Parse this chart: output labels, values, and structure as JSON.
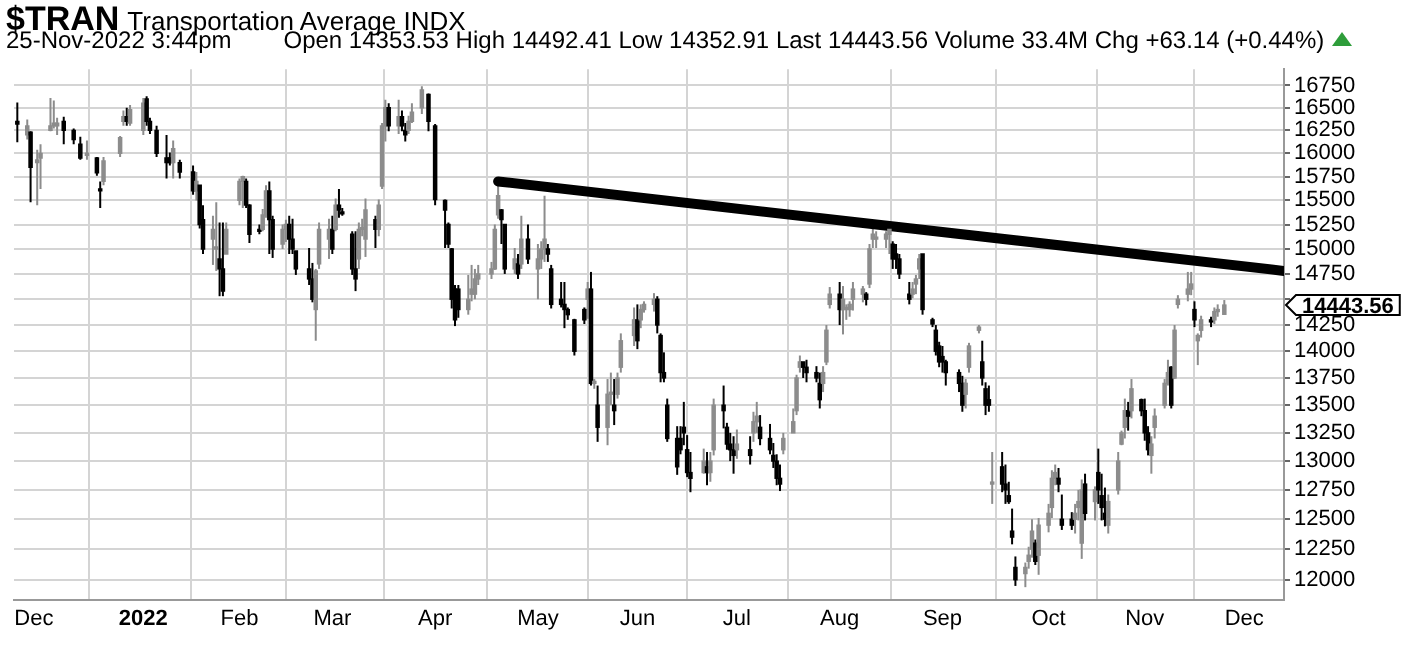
{
  "chart_data": {
    "type": "candlestick",
    "title": "$TRAN",
    "subtitle": "Transportation Average INDX",
    "annotations": [
      "25-Nov-2022 3:44pm",
      "Open 14353.53 High 14492.41 Low 14352.91 Last 14443.56 Volume 33.4M Chg +63.14 (+0.44%)",
      "14443.56"
    ],
    "colors": [
      "#000000",
      "#8c8c8c",
      "#000000",
      "#8c8c8c",
      "#8c8c8c",
      "#8c8c8c",
      "#8c8c8c",
      "#8c8c8c",
      "#000000",
      "#000000",
      "#000000",
      "#8c8c8c",
      "#000000",
      "#000000",
      "#8c8c8c",
      "#8c8c8c",
      "#8c8c8c",
      "#000000",
      "#8c8c8c",
      "#8c8c8c",
      "#000000",
      "#000000",
      "#000000",
      "#000000",
      "#000000",
      "#8c8c8c",
      "#000000",
      "#000000",
      "#8c8c8c",
      "#000000",
      "#000000",
      "#8c8c8c",
      "#8c8c8c",
      "#000000",
      "#000000",
      "#8c8c8c",
      "#8c8c8c",
      "#8c8c8c",
      "#000000",
      "#000000",
      "#000000",
      "#8c8c8c",
      "#8c8c8c",
      "#000000",
      "#000000",
      "#8c8c8c",
      "#8c8c8c",
      "#000000",
      "#000000",
      "#000000",
      "#000000",
      "#000000",
      "#8c8c8c",
      "#8c8c8c",
      "#8c8c8c",
      "#000000",
      "#8c8c8c",
      "#000000",
      "#000000",
      "#000000",
      "#000000",
      "#8c8c8c",
      "#8c8c8c",
      "#8c8c8c",
      "#000000",
      "#8c8c8c",
      "#8c8c8c",
      "#8c8c8c",
      "#000000",
      "#8c8c8c",
      "#000000",
      "#000000",
      "#8c8c8c",
      "#8c8c8c",
      "#8c8c8c",
      "#000000",
      "#000000",
      "#000000",
      "#000000",
      "#000000",
      "#000000",
      "#000000",
      "#8c8c8c",
      "#8c8c8c",
      "#8c8c8c",
      "#8c8c8c",
      "#8c8c8c",
      "#8c8c8c",
      "#8c8c8c",
      "#000000",
      "#000000",
      "#8c8c8c",
      "#000000",
      "#8c8c8c",
      "#000000",
      "#8c8c8c",
      "#8c8c8c",
      "#8c8c8c",
      "#000000",
      "#000000",
      "#000000",
      "#000000",
      "#000000",
      "#000000",
      "#000000",
      "#8c8c8c",
      "#000000",
      "#8c8c8c",
      "#000000",
      "#8c8c8c",
      "#8c8c8c",
      "#000000",
      "#8c8c8c",
      "#8c8c8c",
      "#8c8c8c",
      "#000000",
      "#8c8c8c",
      "#8c8c8c",
      "#8c8c8c",
      "#000000",
      "#000000",
      "#000000",
      "#000000",
      "#000000",
      "#000000",
      "#000000",
      "#000000",
      "#000000",
      "#8c8c8c",
      "#000000",
      "#8c8c8c",
      "#8c8c8c",
      "#000000",
      "#000000",
      "#000000",
      "#000000",
      "#8c8c8c",
      "#000000",
      "#8c8c8c",
      "#8c8c8c",
      "#000000",
      "#000000",
      "#000000",
      "#000000",
      "#000000",
      "#8c8c8c",
      "#8c8c8c",
      "#8c8c8c",
      "#8c8c8c",
      "#000000",
      "#000000",
      "#000000",
      "#000000",
      "#8c8c8c",
      "#8c8c8c",
      "#8c8c8c",
      "#000000",
      "#8c8c8c",
      "#8c8c8c",
      "#8c8c8c",
      "#8c8c8c",
      "#8c8c8c",
      "#000000",
      "#8c8c8c",
      "#8c8c8c",
      "#8c8c8c",
      "#8c8c8c",
      "#8c8c8c",
      "#000000",
      "#000000",
      "#000000",
      "#000000",
      "#8c8c8c",
      "#8c8c8c",
      "#8c8c8c",
      "#000000",
      "#000000",
      "#000000",
      "#000000",
      "#000000",
      "#000000",
      "#000000",
      "#000000",
      "#8c8c8c",
      "#8c8c8c",
      "#8c8c8c",
      "#000000",
      "#000000",
      "#000000",
      "#8c8c8c",
      "#000000",
      "#000000",
      "#000000",
      "#000000",
      "#000000",
      "#8c8c8c",
      "#8c8c8c",
      "#8c8c8c",
      "#000000",
      "#8c8c8c",
      "#8c8c8c",
      "#8c8c8c",
      "#8c8c8c",
      "#000000",
      "#000000",
      "#000000",
      "#8c8c8c",
      "#8c8c8c",
      "#8c8c8c",
      "#000000",
      "#8c8c8c",
      "#000000",
      "#000000",
      "#000000",
      "#8c8c8c",
      "#8c8c8c",
      "#8c8c8c",
      "#8c8c8c",
      "#000000",
      "#8c8c8c",
      "#000000",
      "#000000",
      "#000000",
      "#8c8c8c",
      "#8c8c8c",
      "#8c8c8c",
      "#8c8c8c",
      "#000000",
      "#8c8c8c",
      "#8c8c8c",
      "#8c8c8c",
      "#8c8c8c",
      "#000000",
      "#8c8c8c",
      "#8c8c8c",
      "#000000",
      "#8c8c8c",
      "#8c8c8c",
      "#8c8c8c"
    ],
    "log": true,
    "grid": true,
    "xlim": [
      "2021-11-25",
      "2022-12-13"
    ],
    "xticks": [
      {
        "value": "2021-12-01",
        "label": "Dec"
      },
      {
        "value": "2022-01-03",
        "label": "2022"
      },
      {
        "value": "2022-02-01",
        "label": "Feb"
      },
      {
        "value": "2022-03-01",
        "label": "Mar"
      },
      {
        "value": "2022-04-01",
        "label": "Apr"
      },
      {
        "value": "2022-05-02",
        "label": "May"
      },
      {
        "value": "2022-06-01",
        "label": "Jun"
      },
      {
        "value": "2022-07-01",
        "label": "Jul"
      },
      {
        "value": "2022-08-01",
        "label": "Aug"
      },
      {
        "value": "2022-09-01",
        "label": "Sep"
      },
      {
        "value": "2022-10-03",
        "label": "Oct"
      },
      {
        "value": "2022-11-01",
        "label": "Nov"
      },
      {
        "value": "2022-12-01",
        "label": "Dec"
      }
    ],
    "ylim": [
      11837,
      16935
    ],
    "yticks": [
      12000,
      12250,
      12500,
      12750,
      13000,
      13250,
      13500,
      13750,
      14000,
      14250,
      {
        "value": 14500,
        "label": null
      },
      14750,
      15000,
      15250,
      15500,
      15750,
      16000,
      16250,
      16500,
      16750
    ],
    "x": [
      "2021-11-26",
      "2021-11-29",
      "2021-11-30",
      "2021-12-02",
      "2021-12-03",
      "2021-12-06",
      "2021-12-07",
      "2021-12-08",
      "2021-12-10",
      "2021-12-13",
      "2021-12-15",
      "2021-12-17",
      "2021-12-20",
      "2021-12-21",
      "2021-12-22",
      "2021-12-27",
      "2021-12-28",
      "2021-12-29",
      "2021-12-30",
      "2022-01-03",
      "2022-01-04",
      "2022-01-05",
      "2022-01-07",
      "2022-01-10",
      "2022-01-11",
      "2022-01-12",
      "2022-01-14",
      "2022-01-18",
      "2022-01-19",
      "2022-01-20",
      "2022-01-21",
      "2022-01-24",
      "2022-01-25",
      "2022-01-26",
      "2022-01-27",
      "2022-01-28",
      "2022-02-01",
      "2022-02-02",
      "2022-02-03",
      "2022-02-04",
      "2022-02-07",
      "2022-02-08",
      "2022-02-09",
      "2022-02-10",
      "2022-02-11",
      "2022-02-14",
      "2022-02-15",
      "2022-02-16",
      "2022-02-17",
      "2022-02-18",
      "2022-02-22",
      "2022-02-23",
      "2022-02-24",
      "2022-02-25",
      "2022-02-28",
      "2022-03-01",
      "2022-03-02",
      "2022-03-03",
      "2022-03-04",
      "2022-03-07",
      "2022-03-08",
      "2022-03-09",
      "2022-03-10",
      "2022-03-11",
      "2022-03-14",
      "2022-03-15",
      "2022-03-16",
      "2022-03-17",
      "2022-03-18",
      "2022-03-21",
      "2022-03-22",
      "2022-03-23",
      "2022-03-24",
      "2022-03-25",
      "2022-03-28",
      "2022-03-30",
      "2022-04-01",
      "2022-04-04",
      "2022-04-05",
      "2022-04-06",
      "2022-04-07",
      "2022-04-08",
      "2022-04-11",
      "2022-04-12",
      "2022-04-13",
      "2022-04-14",
      "2022-04-18",
      "2022-04-19",
      "2022-04-20",
      "2022-04-21",
      "2022-04-22",
      "2022-04-25",
      "2022-04-26",
      "2022-04-27",
      "2022-04-29",
      "2022-05-02",
      "2022-05-03",
      "2022-05-04",
      "2022-05-05",
      "2022-05-06",
      "2022-05-09",
      "2022-05-10",
      "2022-05-11",
      "2022-05-13",
      "2022-05-16",
      "2022-05-17",
      "2022-05-18",
      "2022-05-19",
      "2022-05-20",
      "2022-05-23",
      "2022-05-24",
      "2022-05-25",
      "2022-05-26",
      "2022-05-27",
      "2022-05-31",
      "2022-06-01",
      "2022-06-02",
      "2022-06-03",
      "2022-06-06",
      "2022-06-07",
      "2022-06-08",
      "2022-06-09",
      "2022-06-10",
      "2022-06-13",
      "2022-06-14",
      "2022-06-15",
      "2022-06-16",
      "2022-06-17",
      "2022-06-21",
      "2022-06-22",
      "2022-06-23",
      "2022-06-24",
      "2022-06-27",
      "2022-06-28",
      "2022-06-29",
      "2022-06-30",
      "2022-07-01",
      "2022-07-05",
      "2022-07-06",
      "2022-07-07",
      "2022-07-08",
      "2022-07-11",
      "2022-07-12",
      "2022-07-13",
      "2022-07-14",
      "2022-07-15",
      "2022-07-18",
      "2022-07-19",
      "2022-07-20",
      "2022-07-21",
      "2022-07-22",
      "2022-07-25",
      "2022-07-26",
      "2022-07-27",
      "2022-07-28",
      "2022-07-29",
      "2022-08-01",
      "2022-08-02",
      "2022-08-03",
      "2022-08-04",
      "2022-08-05",
      "2022-08-08",
      "2022-08-09",
      "2022-08-10",
      "2022-08-11",
      "2022-08-12",
      "2022-08-15",
      "2022-08-16",
      "2022-08-17",
      "2022-08-18",
      "2022-08-19",
      "2022-08-22",
      "2022-08-23",
      "2022-08-24",
      "2022-08-25",
      "2022-08-26",
      "2022-08-29",
      "2022-08-30",
      "2022-08-31",
      "2022-09-01",
      "2022-09-02",
      "2022-09-06",
      "2022-09-07",
      "2022-09-08",
      "2022-09-09",
      "2022-09-12",
      "2022-09-13",
      "2022-09-14",
      "2022-09-15",
      "2022-09-16",
      "2022-09-19",
      "2022-09-20",
      "2022-09-21",
      "2022-09-22",
      "2022-09-23",
      "2022-09-26",
      "2022-09-27",
      "2022-09-28",
      "2022-09-29",
      "2022-09-30",
      "2022-10-03",
      "2022-10-04",
      "2022-10-05",
      "2022-10-06",
      "2022-10-07",
      "2022-10-10",
      "2022-10-11",
      "2022-10-12",
      "2022-10-13",
      "2022-10-14",
      "2022-10-17",
      "2022-10-18",
      "2022-10-19",
      "2022-10-20",
      "2022-10-21",
      "2022-10-24",
      "2022-10-25",
      "2022-10-26",
      "2022-10-27",
      "2022-10-28",
      "2022-10-31",
      "2022-11-01",
      "2022-11-02",
      "2022-11-03",
      "2022-11-04",
      "2022-11-07",
      "2022-11-08",
      "2022-11-09",
      "2022-11-10",
      "2022-11-11",
      "2022-11-14",
      "2022-11-15",
      "2022-11-16",
      "2022-11-17",
      "2022-11-18",
      "2022-11-21",
      "2022-11-22",
      "2022-11-23",
      "2022-11-25"
    ],
    "ohlc": [
      [
        16350,
        16560,
        16120,
        16320
      ],
      [
        16200,
        16370,
        16150,
        16300
      ],
      [
        16230,
        16240,
        15480,
        15850
      ],
      [
        15900,
        16040,
        15450,
        15930
      ],
      [
        15950,
        16100,
        15620,
        16000
      ],
      [
        16250,
        16610,
        16240,
        16300
      ],
      [
        16300,
        16580,
        16270,
        16330
      ],
      [
        16300,
        16390,
        16200,
        16330
      ],
      [
        16350,
        16400,
        16100,
        16250
      ],
      [
        16250,
        16270,
        16100,
        16150
      ],
      [
        16100,
        16180,
        15930,
        15950
      ],
      [
        15980,
        16140,
        15930,
        16000
      ],
      [
        15950,
        15960,
        15760,
        15790
      ],
      [
        15620,
        15700,
        15420,
        15600
      ],
      [
        15700,
        15960,
        15660,
        15920
      ],
      [
        16000,
        16190,
        15960,
        16170
      ],
      [
        16350,
        16470,
        16300,
        16400
      ],
      [
        16400,
        16500,
        16300,
        16350
      ],
      [
        16330,
        16530,
        16300,
        16480
      ],
      [
        16250,
        16610,
        16200,
        16550
      ],
      [
        16600,
        16630,
        16300,
        16350
      ],
      [
        16350,
        16390,
        16210,
        16250
      ],
      [
        16250,
        16300,
        15960,
        16000
      ],
      [
        15950,
        16200,
        15730,
        15900
      ],
      [
        15950,
        16010,
        15870,
        15900
      ],
      [
        15900,
        16140,
        15730,
        16050
      ],
      [
        15900,
        15930,
        15730,
        15800
      ],
      [
        15800,
        15870,
        15560,
        15600
      ],
      [
        15600,
        15800,
        15500,
        15700
      ],
      [
        15660,
        15660,
        15210,
        15250
      ],
      [
        15300,
        15450,
        14950,
        15000
      ],
      [
        15100,
        15340,
        14840,
        15200
      ],
      [
        15000,
        15480,
        14780,
        15010
      ],
      [
        14900,
        15270,
        14530,
        14800
      ],
      [
        14800,
        15270,
        14530,
        14580
      ],
      [
        14950,
        15270,
        14950,
        15200
      ],
      [
        15500,
        15730,
        15450,
        15700
      ],
      [
        15700,
        15760,
        15420,
        15750
      ],
      [
        15700,
        15730,
        15420,
        15450
      ],
      [
        15450,
        15460,
        15060,
        15150
      ],
      [
        15200,
        15250,
        15150,
        15180
      ],
      [
        15200,
        15410,
        15180,
        15350
      ],
      [
        15350,
        15660,
        15320,
        15600
      ],
      [
        15600,
        15700,
        14950,
        15300
      ],
      [
        15300,
        15340,
        14910,
        15000
      ],
      [
        15050,
        15250,
        15000,
        15200
      ],
      [
        15200,
        15300,
        15070,
        15250
      ],
      [
        15250,
        15340,
        14950,
        15100
      ],
      [
        15100,
        15310,
        14950,
        15000
      ],
      [
        14980,
        14980,
        14740,
        14800
      ],
      [
        14800,
        15010,
        14640,
        14700
      ],
      [
        14700,
        14860,
        14470,
        14500
      ],
      [
        14400,
        14800,
        14100,
        14780
      ],
      [
        14850,
        15270,
        14800,
        15200
      ],
      [
        15100,
        15310,
        14900,
        15200
      ],
      [
        15200,
        15340,
        14950,
        15000
      ],
      [
        15200,
        15520,
        15180,
        15450
      ],
      [
        15450,
        15620,
        15320,
        15400
      ],
      [
        15380,
        15420,
        15340,
        15360
      ],
      [
        15150,
        15180,
        14740,
        14800
      ],
      [
        14800,
        15180,
        14580,
        14700
      ],
      [
        14900,
        15270,
        14800,
        15200
      ],
      [
        15200,
        15310,
        15130,
        15200
      ],
      [
        15100,
        15520,
        14920,
        15400
      ],
      [
        15300,
        15340,
        15010,
        15200
      ],
      [
        15200,
        15510,
        15130,
        15450
      ],
      [
        15650,
        16330,
        15620,
        16300
      ],
      [
        16300,
        16590,
        16130,
        16500
      ],
      [
        16500,
        16550,
        16240,
        16300
      ],
      [
        16300,
        16590,
        16210,
        16400
      ],
      [
        16400,
        16470,
        16240,
        16300
      ],
      [
        16250,
        16330,
        16130,
        16200
      ],
      [
        16250,
        16410,
        16210,
        16350
      ],
      [
        16350,
        16550,
        16330,
        16450
      ],
      [
        16500,
        16740,
        16430,
        16700
      ],
      [
        16650,
        16660,
        16240,
        16350
      ],
      [
        16300,
        16320,
        15450,
        15510
      ],
      [
        15500,
        15510,
        15010,
        15400
      ],
      [
        15250,
        15270,
        15010,
        15050
      ],
      [
        15000,
        15010,
        14410,
        14500
      ],
      [
        14600,
        14640,
        14240,
        14300
      ],
      [
        14600,
        14640,
        14320,
        14400
      ],
      [
        14400,
        14740,
        14350,
        14500
      ],
      [
        14550,
        14840,
        14480,
        14600
      ],
      [
        14550,
        14800,
        14500,
        14700
      ],
      [
        14700,
        14840,
        14640,
        14750
      ],
      [
        14750,
        14870,
        14700,
        14800
      ],
      [
        14800,
        15250,
        14790,
        15200
      ],
      [
        15350,
        15660,
        15310,
        15550
      ],
      [
        15400,
        15410,
        15050,
        15300
      ],
      [
        15250,
        15250,
        14750,
        14800
      ],
      [
        14800,
        15010,
        14750,
        14900
      ],
      [
        14850,
        14950,
        14700,
        14750
      ],
      [
        14850,
        15340,
        14800,
        15100
      ],
      [
        15100,
        15250,
        14850,
        14900
      ],
      [
        14800,
        15050,
        14500,
        14900
      ],
      [
        14900,
        15080,
        14800,
        15000
      ],
      [
        15000,
        15550,
        14870,
        15100
      ],
      [
        15000,
        15050,
        14870,
        14950
      ],
      [
        14800,
        14840,
        14410,
        14450
      ],
      [
        14500,
        14670,
        14420,
        14450
      ],
      [
        14450,
        14670,
        14220,
        14400
      ],
      [
        14400,
        14420,
        14300,
        14350
      ],
      [
        14300,
        14310,
        13960,
        14000
      ],
      [
        14400,
        14420,
        14260,
        14300
      ],
      [
        14500,
        14670,
        14310,
        14600
      ],
      [
        14600,
        14770,
        13680,
        13700
      ],
      [
        13700,
        13740,
        13650,
        13700
      ],
      [
        13500,
        13680,
        13170,
        13300
      ],
      [
        13300,
        13740,
        13140,
        13600
      ],
      [
        13600,
        13800,
        13500,
        13600
      ],
      [
        13500,
        13740,
        13320,
        13450
      ],
      [
        13600,
        13800,
        13560,
        13750
      ],
      [
        13850,
        14170,
        13800,
        14100
      ],
      [
        14150,
        14420,
        14050,
        14300
      ],
      [
        14300,
        14450,
        14020,
        14100
      ],
      [
        14300,
        14450,
        14220,
        14400
      ],
      [
        14400,
        14480,
        14370,
        14450
      ],
      [
        14450,
        14560,
        14380,
        14500
      ],
      [
        14500,
        14530,
        14170,
        14250
      ],
      [
        14150,
        14170,
        13710,
        13800
      ],
      [
        13800,
        13990,
        13710,
        13750
      ],
      [
        13500,
        13560,
        13170,
        13200
      ],
      [
        13200,
        13310,
        12880,
        12950
      ],
      [
        13200,
        13310,
        13060,
        13100
      ],
      [
        13300,
        13530,
        13140,
        13250
      ],
      [
        13100,
        13230,
        12860,
        12900
      ],
      [
        12900,
        13080,
        12730,
        12850
      ],
      [
        12900,
        13110,
        12890,
        13000
      ],
      [
        12950,
        13080,
        12790,
        12900
      ],
      [
        12900,
        13080,
        12820,
        13000
      ],
      [
        13100,
        13560,
        13050,
        13500
      ],
      [
        13500,
        13680,
        13290,
        13450
      ],
      [
        13300,
        13340,
        13100,
        13150
      ],
      [
        13150,
        13250,
        13000,
        13100
      ],
      [
        13100,
        13220,
        12890,
        13050
      ],
      [
        13100,
        13280,
        13020,
        13150
      ],
      [
        13100,
        13220,
        12970,
        13050
      ],
      [
        13250,
        13440,
        13170,
        13350
      ],
      [
        13350,
        13530,
        13250,
        13400
      ],
      [
        13300,
        13410,
        13140,
        13200
      ],
      [
        13200,
        13330,
        13060,
        13100
      ],
      [
        13050,
        13160,
        12940,
        13000
      ],
      [
        13000,
        13060,
        12790,
        12850
      ],
      [
        12850,
        12970,
        12740,
        12800
      ],
      [
        13100,
        13250,
        13060,
        13200
      ],
      [
        13250,
        13470,
        13250,
        13350
      ],
      [
        13450,
        13780,
        13410,
        13750
      ],
      [
        13850,
        13960,
        13800,
        13900
      ],
      [
        13900,
        13900,
        13750,
        13850
      ],
      [
        13850,
        13920,
        13710,
        13800
      ],
      [
        13800,
        13860,
        13710,
        13750
      ],
      [
        13700,
        13800,
        13470,
        13550
      ],
      [
        13700,
        13860,
        13620,
        13800
      ],
      [
        13900,
        14250,
        13870,
        14200
      ],
      [
        14450,
        14620,
        14410,
        14550
      ],
      [
        14550,
        14670,
        14250,
        14400
      ],
      [
        14400,
        14630,
        14160,
        14500
      ],
      [
        14400,
        14450,
        14300,
        14400
      ],
      [
        14400,
        14480,
        14330,
        14450
      ],
      [
        14500,
        14670,
        14390,
        14600
      ],
      [
        14550,
        14630,
        14470,
        14600
      ],
      [
        14550,
        14570,
        14440,
        14500
      ],
      [
        14650,
        15050,
        14610,
        15000
      ],
      [
        15100,
        15210,
        15010,
        15150
      ],
      [
        15100,
        15180,
        15010,
        15100
      ],
      [
        15100,
        15180,
        15010,
        15150
      ],
      [
        15150,
        15270,
        14950,
        15200
      ],
      [
        15050,
        15080,
        14800,
        14900
      ],
      [
        14950,
        15050,
        14800,
        14900
      ],
      [
        14900,
        14950,
        14700,
        14750
      ],
      [
        14550,
        14670,
        14450,
        14500
      ],
      [
        14550,
        14670,
        14510,
        14600
      ],
      [
        14650,
        14740,
        14550,
        14700
      ],
      [
        14800,
        14950,
        14700,
        14900
      ],
      [
        14950,
        14950,
        14350,
        14400
      ],
      [
        14300,
        14320,
        14230,
        14260
      ],
      [
        14200,
        14250,
        13960,
        14000
      ],
      [
        14050,
        14090,
        13850,
        13900
      ],
      [
        13950,
        14050,
        13800,
        13900
      ],
      [
        13900,
        13920,
        13680,
        13800
      ],
      [
        13800,
        13830,
        13620,
        13700
      ],
      [
        13700,
        13770,
        13440,
        13500
      ],
      [
        13600,
        13740,
        13470,
        13700
      ],
      [
        13850,
        14080,
        13800,
        14050
      ],
      [
        14200,
        14250,
        14170,
        14230
      ],
      [
        13900,
        14100,
        13680,
        13750
      ],
      [
        13650,
        13710,
        13410,
        13500
      ],
      [
        13550,
        13680,
        13440,
        13500
      ],
      [
        12800,
        13080,
        12630,
        12800
      ],
      [
        12950,
        13080,
        12730,
        12800
      ],
      [
        12800,
        12970,
        12630,
        12750
      ],
      [
        12700,
        12820,
        12630,
        12650
      ],
      [
        12400,
        12590,
        12290,
        12350
      ],
      [
        12100,
        12190,
        11950,
        12000
      ],
      [
        12050,
        12140,
        11940,
        12100
      ],
      [
        12150,
        12270,
        12090,
        12200
      ],
      [
        12250,
        12500,
        12180,
        12400
      ],
      [
        12300,
        12330,
        12120,
        12150
      ],
      [
        12200,
        12510,
        12040,
        12450
      ],
      [
        12450,
        12630,
        12390,
        12550
      ],
      [
        12600,
        12920,
        12510,
        12850
      ],
      [
        12850,
        12970,
        12790,
        12900
      ],
      [
        12850,
        12940,
        12730,
        12800
      ],
      [
        12500,
        12710,
        12410,
        12450
      ],
      [
        12500,
        12560,
        12410,
        12450
      ],
      [
        12500,
        12630,
        12380,
        12550
      ],
      [
        12600,
        12750,
        12490,
        12650
      ],
      [
        12300,
        12840,
        12170,
        12750
      ],
      [
        12800,
        12890,
        12490,
        12550
      ],
      [
        12650,
        12780,
        12490,
        12750
      ],
      [
        12900,
        13110,
        12630,
        12750
      ],
      [
        12700,
        12890,
        12490,
        12600
      ],
      [
        12550,
        12770,
        12440,
        12500
      ],
      [
        12450,
        12710,
        12380,
        12650
      ],
      [
        12750,
        13080,
        12710,
        13000
      ],
      [
        13150,
        13270,
        13140,
        13250
      ],
      [
        13300,
        13560,
        13200,
        13450
      ],
      [
        13450,
        13530,
        13270,
        13400
      ],
      [
        13450,
        13740,
        13380,
        13650
      ],
      [
        13550,
        13560,
        13400,
        13450
      ],
      [
        13450,
        13560,
        13180,
        13250
      ],
      [
        13250,
        13310,
        13050,
        13100
      ],
      [
        13050,
        13220,
        12890,
        13150
      ],
      [
        13300,
        13470,
        13200,
        13400
      ],
      [
        13500,
        13740,
        13470,
        13700
      ],
      [
        13700,
        13920,
        13680,
        13800
      ],
      [
        13850,
        13860,
        13470,
        13500
      ],
      [
        13750,
        14250,
        13740,
        14200
      ],
      [
        14450,
        14540,
        14410,
        14500
      ],
      [
        14550,
        14770,
        14480,
        14600
      ],
      [
        14600,
        14770,
        14540,
        14650
      ],
      [
        14400,
        14480,
        14230,
        14300
      ],
      [
        14100,
        14170,
        13870,
        14150
      ],
      [
        14200,
        14340,
        14130,
        14300
      ],
      [
        14300,
        14330,
        14230,
        14280
      ],
      [
        14300,
        14420,
        14260,
        14380
      ],
      [
        14380,
        14450,
        14330,
        14400
      ],
      [
        14353.53,
        14492.41,
        14352.91,
        14443.56
      ]
    ],
    "series": [
      {
        "type": "line",
        "color": "#000000",
        "x": [
          "2022-04-20",
          "2022-12-13"
        ],
        "values": [
          15700,
          14780
        ]
      }
    ]
  }
}
